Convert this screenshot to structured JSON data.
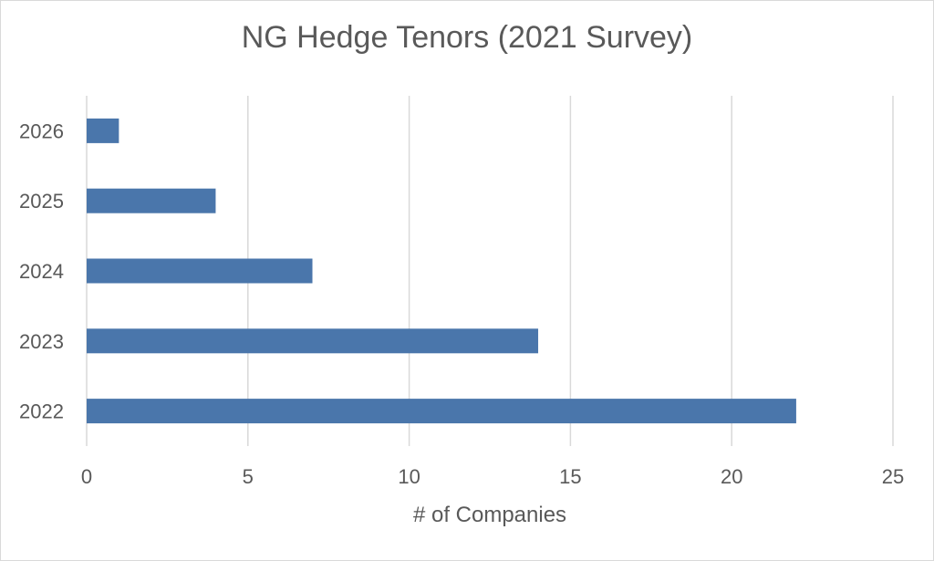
{
  "chart_data": {
    "type": "bar",
    "orientation": "horizontal",
    "title": "NG Hedge Tenors (2021 Survey)",
    "xlabel": "# of Companies",
    "ylabel": "",
    "categories": [
      "2022",
      "2023",
      "2024",
      "2025",
      "2026"
    ],
    "values": [
      22,
      14,
      7,
      4,
      1
    ],
    "xlim": [
      0,
      25
    ],
    "xticks": [
      0,
      5,
      10,
      15,
      20,
      25
    ],
    "grid": true,
    "legend": "none",
    "bar_color": "#4a76ab"
  }
}
